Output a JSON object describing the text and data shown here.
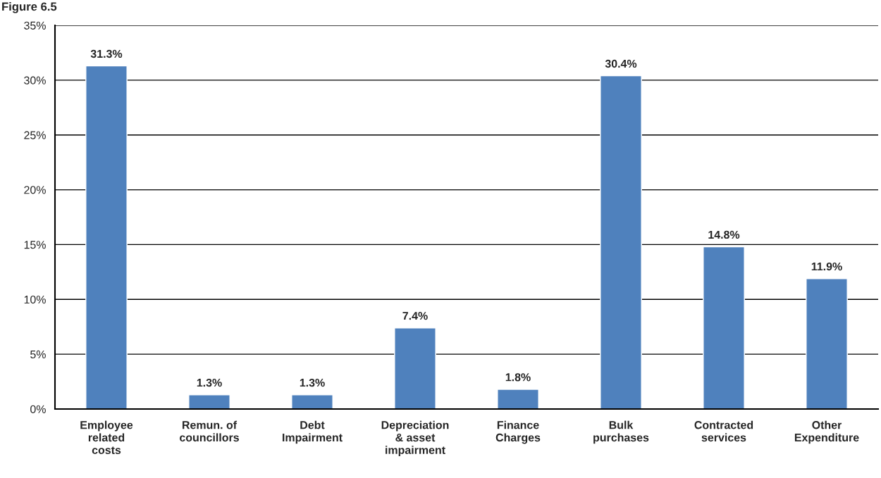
{
  "chart_data": {
    "type": "bar",
    "title": "Figure 6.5",
    "categories": [
      "Employee related costs",
      "Remun. of councillors",
      "Debt Impairment",
      "Depreciation & asset impairment",
      "Finance Charges",
      "Bulk purchases",
      "Contracted services",
      "Other Expenditure"
    ],
    "values": [
      31.3,
      1.3,
      1.3,
      7.4,
      1.8,
      30.4,
      14.8,
      11.9
    ],
    "value_labels": [
      "31.3%",
      "1.3%",
      "1.3%",
      "7.4%",
      "1.8%",
      "30.4%",
      "14.8%",
      "11.9%"
    ],
    "color": "#4f81bd",
    "ylim": [
      0,
      35
    ],
    "yticks": [
      {
        "value": 0,
        "label": "0%"
      },
      {
        "value": 5,
        "label": "5%"
      },
      {
        "value": 10,
        "label": "10%"
      },
      {
        "value": 15,
        "label": "15%"
      },
      {
        "value": 20,
        "label": "20%"
      },
      {
        "value": 25,
        "label": "25%"
      },
      {
        "value": 30,
        "label": "30%"
      },
      {
        "value": 35,
        "label": "35%"
      }
    ],
    "grid": "y"
  }
}
